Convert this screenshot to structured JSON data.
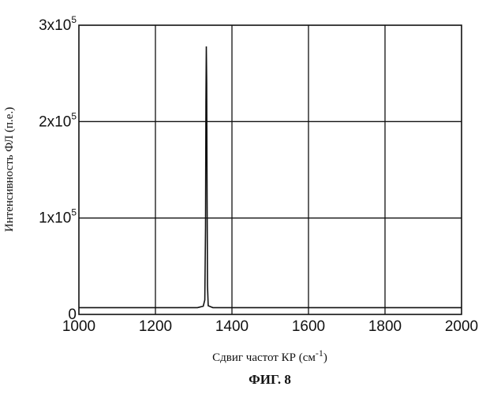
{
  "chart_data": {
    "type": "line",
    "title": "",
    "xlabel": "Сдвиг частот КР (см",
    "xlabel_sup": "-1",
    "xlabel_close": ")",
    "ylabel": "Интенсивность ФЛ (п.е.)",
    "xlim": [
      1000,
      2000
    ],
    "ylim": [
      0,
      300000
    ],
    "grid": true,
    "x_ticks": [
      {
        "value": 1000,
        "label": "1000"
      },
      {
        "value": 1200,
        "label": "1200"
      },
      {
        "value": 1400,
        "label": "1400"
      },
      {
        "value": 1600,
        "label": "1600"
      },
      {
        "value": 1800,
        "label": "1800"
      },
      {
        "value": 2000,
        "label": "2000"
      }
    ],
    "y_ticks": [
      {
        "value": 0,
        "mantissa": "0",
        "exp": ""
      },
      {
        "value": 100000,
        "mantissa": "1x10",
        "exp": "5"
      },
      {
        "value": 200000,
        "mantissa": "2x10",
        "exp": "5"
      },
      {
        "value": 300000,
        "mantissa": "3x10",
        "exp": "5"
      }
    ],
    "series": [
      {
        "values": [
          {
            "x": 1000,
            "y": 7000
          },
          {
            "x": 1200,
            "y": 7000
          },
          {
            "x": 1310,
            "y": 7000
          },
          {
            "x": 1325,
            "y": 8500
          },
          {
            "x": 1329,
            "y": 15000
          },
          {
            "x": 1331,
            "y": 90000
          },
          {
            "x": 1332,
            "y": 220000
          },
          {
            "x": 1333,
            "y": 278000
          },
          {
            "x": 1334,
            "y": 240000
          },
          {
            "x": 1335,
            "y": 120000
          },
          {
            "x": 1336,
            "y": 30000
          },
          {
            "x": 1338,
            "y": 9000
          },
          {
            "x": 1350,
            "y": 7000
          },
          {
            "x": 1600,
            "y": 7000
          },
          {
            "x": 1800,
            "y": 7000
          },
          {
            "x": 2000,
            "y": 7000
          }
        ]
      }
    ]
  },
  "caption": "ФИГ. 8"
}
